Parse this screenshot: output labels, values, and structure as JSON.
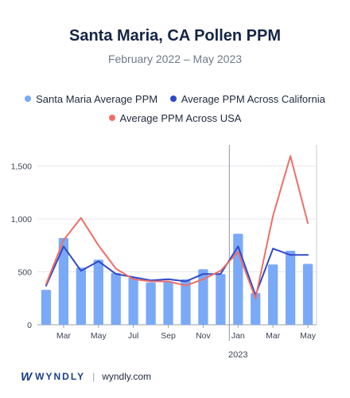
{
  "chart_data": {
    "type": "bar",
    "title": "Santa Maria, CA Pollen PPM",
    "subtitle": "February 2022 – May 2023",
    "categories": [
      "Feb 2022",
      "Mar 2022",
      "Apr 2022",
      "May 2022",
      "Jun 2022",
      "Jul 2022",
      "Aug 2022",
      "Sep 2022",
      "Oct 2022",
      "Nov 2022",
      "Dec 2022",
      "Jan 2023",
      "Feb 2023",
      "Mar 2023",
      "Apr 2023",
      "May 2023"
    ],
    "x_tick_labels": [
      "",
      "Mar",
      "",
      "May",
      "",
      "Jul",
      "",
      "Sep",
      "",
      "Nov",
      "",
      "Jan",
      "",
      "Mar",
      "",
      "May"
    ],
    "year_label": "2023",
    "ylim": [
      0,
      1700
    ],
    "y_ticks": [
      0,
      500,
      1000,
      1500
    ],
    "y_tick_labels": [
      "0",
      "500",
      "1,000",
      "1,500"
    ],
    "grid": true,
    "legend_position": "top",
    "series": [
      {
        "name": "Santa Maria Average PPM",
        "kind": "bar",
        "color": "#7aaaf7",
        "values": [
          330,
          820,
          540,
          615,
          490,
          450,
          400,
          410,
          430,
          525,
          480,
          860,
          300,
          570,
          700,
          575
        ]
      },
      {
        "name": "Average PPM Across California",
        "kind": "line",
        "color": "#3048c8",
        "values": [
          370,
          740,
          510,
          600,
          480,
          450,
          420,
          430,
          410,
          480,
          480,
          740,
          280,
          720,
          660,
          660
        ]
      },
      {
        "name": "Average PPM Across USA",
        "kind": "line",
        "color": "#ee6f66",
        "values": [
          385,
          800,
          1010,
          750,
          530,
          430,
          410,
          410,
          370,
          430,
          510,
          690,
          250,
          1030,
          1595,
          960
        ]
      }
    ]
  },
  "footer": {
    "brand_name": "WYNDLY",
    "url": "wyndly.com"
  }
}
